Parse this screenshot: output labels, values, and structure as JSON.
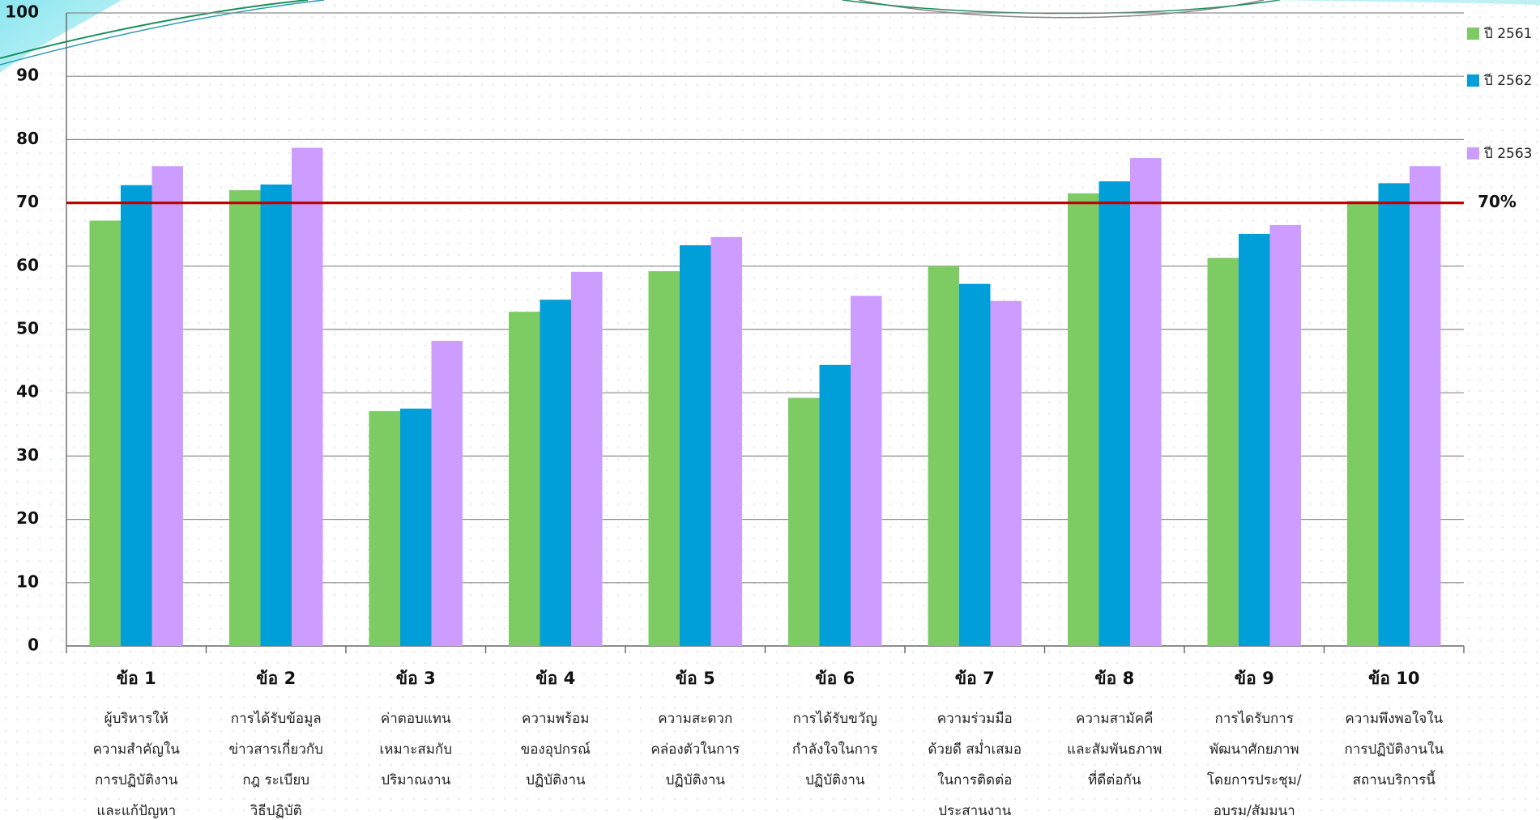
{
  "chart_data": {
    "type": "bar",
    "title": "",
    "xlabel": "",
    "ylabel": "",
    "ylim": [
      0,
      100
    ],
    "yticks": [
      0,
      10,
      20,
      30,
      40,
      50,
      60,
      70,
      80,
      90,
      100
    ],
    "grid": true,
    "legend_position": "right",
    "categories": [
      {
        "label": "ข้อ 1",
        "desc": [
          "ผู้บริหารให้",
          "ความสำคัญใน",
          "การปฏิบัติงาน",
          "และแก้ปัญหา"
        ]
      },
      {
        "label": "ข้อ 2",
        "desc": [
          "การได้รับข้อมูล",
          "ข่าวสารเกี่ยวกับ",
          "กฎ ระเบียบ",
          "วิธีปฏิบัติ"
        ]
      },
      {
        "label": "ข้อ 3",
        "desc": [
          "ค่าตอบแทน",
          "เหมาะสมกับ",
          "ปริมาณงาน"
        ]
      },
      {
        "label": "ข้อ 4",
        "desc": [
          "ความพร้อม",
          "ของอุปกรณ์",
          "ปฏิบัติงาน"
        ]
      },
      {
        "label": "ข้อ 5",
        "desc": [
          "ความสะดวก",
          "คล่องตัวในการ",
          "ปฏิบัติงาน"
        ]
      },
      {
        "label": "ข้อ 6",
        "desc": [
          "การได้รับขวัญ",
          "กำลังใจในการ",
          "ปฏิบัติงาน"
        ]
      },
      {
        "label": "ข้อ 7",
        "desc": [
          "ความร่วมมือ",
          "ด้วยดี สม่ำเสมอ",
          "ในการติดต่อ",
          "ประสานงาน"
        ]
      },
      {
        "label": "ข้อ 8",
        "desc": [
          "ความสามัคคี",
          "และสัมพันธภาพ",
          "ที่ดีต่อกัน"
        ]
      },
      {
        "label": "ข้อ 9",
        "desc": [
          "การไดรับการ",
          "พัฒนาศักยภาพ",
          "โดยการประชุม/",
          "อบรม/สัมมนา"
        ]
      },
      {
        "label": "ข้อ 10",
        "desc": [
          "ความพึงพอใจใน",
          "การปฏิบัติงานใน",
          "สถานบริการนี้"
        ]
      }
    ],
    "series": [
      {
        "name": "ปี 2561",
        "color": "#7ccb63",
        "values": [
          67.2,
          72.0,
          37.1,
          52.8,
          59.2,
          39.2,
          60.0,
          71.5,
          61.3,
          70.3
        ]
      },
      {
        "name": "ปี 2562",
        "color": "#009fd9",
        "values": [
          72.8,
          72.9,
          37.5,
          54.7,
          63.3,
          44.4,
          57.2,
          73.4,
          65.1,
          73.1
        ]
      },
      {
        "name": "ปี 2563",
        "color": "#cc9cff",
        "values": [
          75.8,
          78.7,
          48.2,
          59.1,
          64.6,
          55.3,
          54.5,
          77.1,
          66.5,
          75.8
        ]
      }
    ],
    "reference_line": {
      "value": 70,
      "label": "70%",
      "color": "#c00000"
    }
  }
}
